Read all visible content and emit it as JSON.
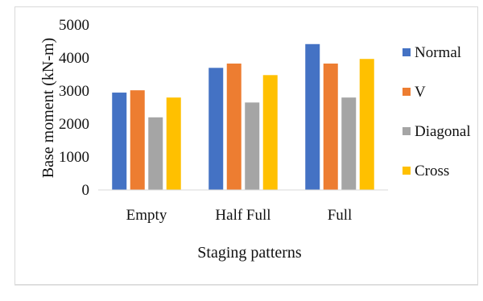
{
  "chart_data": {
    "type": "bar",
    "title": "",
    "xlabel": "Staging patterns",
    "ylabel": "Base moment (kN-m)",
    "ylim": [
      0,
      5000
    ],
    "yticks": [
      0,
      1000,
      2000,
      3000,
      4000,
      5000
    ],
    "grid": false,
    "legend_position": "right",
    "categories": [
      "Empty",
      "Half Full",
      "Full"
    ],
    "series": [
      {
        "name": "Normal",
        "color": "#4472c4",
        "values": [
          2950,
          3700,
          4420
        ]
      },
      {
        "name": "V",
        "color": "#ed7d31",
        "values": [
          3020,
          3830,
          3830
        ]
      },
      {
        "name": "Diagonal",
        "color": "#a5a5a5",
        "values": [
          2200,
          2650,
          2800
        ]
      },
      {
        "name": "Cross",
        "color": "#ffc000",
        "values": [
          2800,
          3480,
          3970
        ]
      }
    ]
  }
}
